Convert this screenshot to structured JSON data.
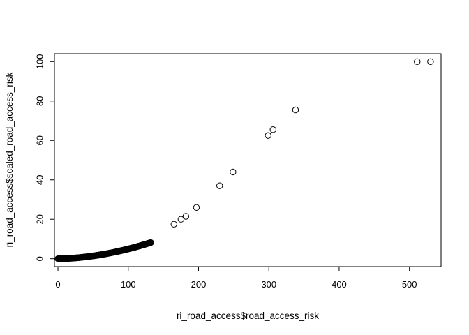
{
  "chart_data": {
    "type": "scatter",
    "title": "",
    "xlabel": "ri_road_access$road_access_risk",
    "ylabel": "ri_road_access$scaled_road_access_risk",
    "xlim": [
      -5,
      545
    ],
    "ylim": [
      -4,
      104
    ],
    "xticks": [
      0,
      100,
      200,
      300,
      400,
      500
    ],
    "yticks": [
      0,
      20,
      40,
      60,
      80,
      100
    ],
    "grid": false,
    "marker": "open-circle",
    "sparse_points": [
      [
        165,
        17.5
      ],
      [
        175,
        20
      ],
      [
        182,
        21.5
      ],
      [
        197,
        26
      ],
      [
        230,
        37
      ],
      [
        249,
        44
      ],
      [
        299,
        62.5
      ],
      [
        306,
        65.5
      ],
      [
        338,
        75.5
      ],
      [
        511,
        100
      ],
      [
        530,
        100
      ]
    ],
    "dense_curve": {
      "formula": "y = 100 * (x / 530)^1.8",
      "x_from": 0,
      "x_to": 132,
      "x_step": 0.8
    }
  }
}
